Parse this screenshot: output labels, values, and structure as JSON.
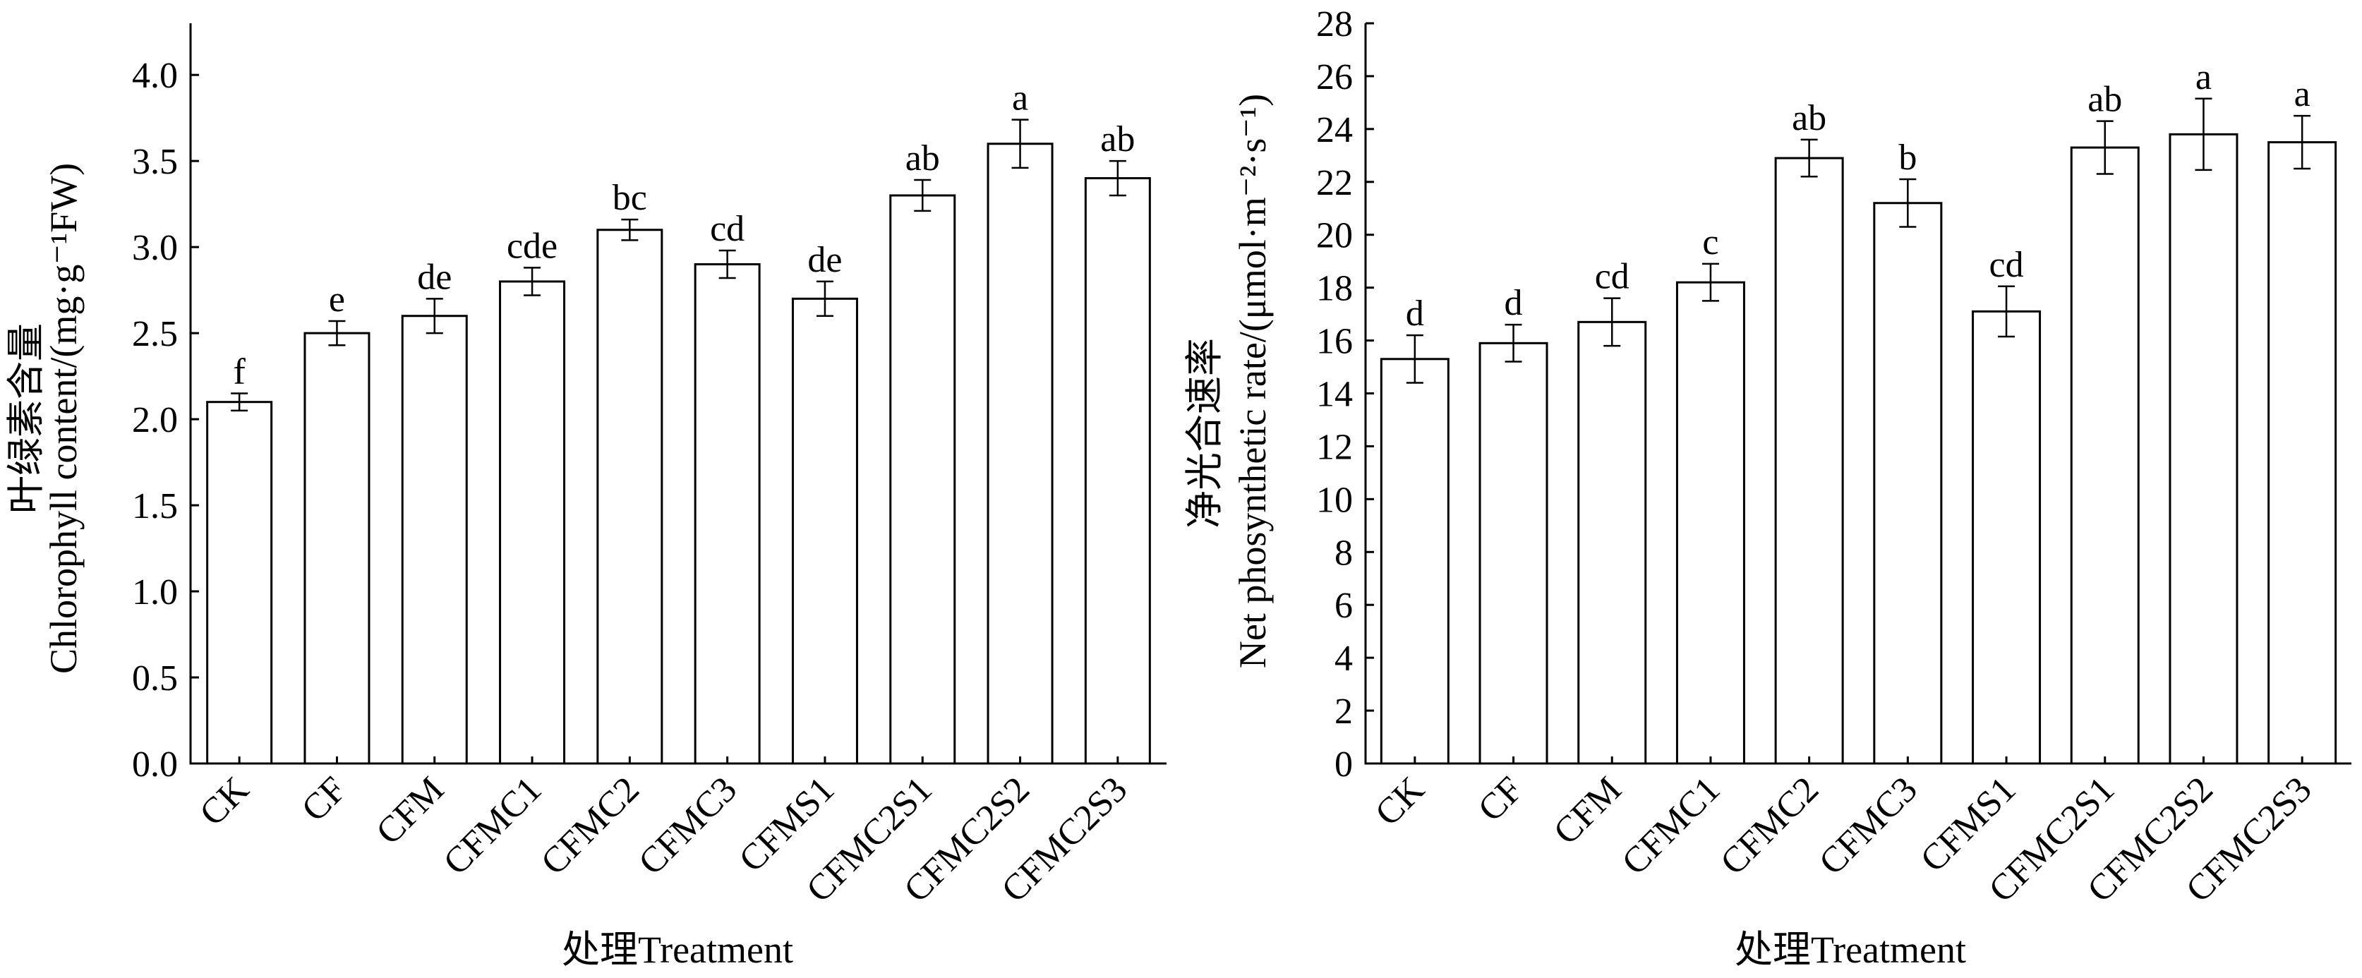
{
  "chart_data": [
    {
      "type": "bar",
      "title": "",
      "xlabel": "处理Treatment",
      "ylabel_cn": "叶绿素含量",
      "ylabel_en": "Chlorophyll content/(mg·g⁻¹FW)",
      "ylim": [
        0,
        4.3
      ],
      "yticks": [
        0.0,
        0.5,
        1.0,
        1.5,
        2.0,
        2.5,
        3.0,
        3.5,
        4.0
      ],
      "ytick_decimals": 1,
      "grid": false,
      "categories": [
        "CK",
        "CF",
        "CFM",
        "CFMC1",
        "CFMC2",
        "CFMC3",
        "CFMS1",
        "CFMC2S1",
        "CFMC2S2",
        "CFMC2S3"
      ],
      "values": [
        2.1,
        2.5,
        2.6,
        2.8,
        3.1,
        2.9,
        2.7,
        3.3,
        3.6,
        3.4
      ],
      "errors": [
        0.05,
        0.07,
        0.1,
        0.08,
        0.06,
        0.08,
        0.1,
        0.09,
        0.14,
        0.1
      ],
      "letters": [
        "f",
        "e",
        "de",
        "cde",
        "bc",
        "cd",
        "de",
        "ab",
        "a",
        "ab"
      ]
    },
    {
      "type": "bar",
      "title": "",
      "xlabel": "处理Treatment",
      "ylabel_cn": "净光合速率",
      "ylabel_en": "Net phosynthetic rate/(μmol·m⁻²·s⁻¹)",
      "ylim": [
        0,
        28
      ],
      "yticks": [
        0,
        2,
        4,
        6,
        8,
        10,
        12,
        14,
        16,
        18,
        20,
        22,
        24,
        26,
        28
      ],
      "ytick_decimals": 0,
      "grid": false,
      "categories": [
        "CK",
        "CF",
        "CFM",
        "CFMC1",
        "CFMC2",
        "CFMC3",
        "CFMS1",
        "CFMC2S1",
        "CFMC2S2",
        "CFMC2S3"
      ],
      "values": [
        15.3,
        15.9,
        16.7,
        18.2,
        22.9,
        21.2,
        17.1,
        23.3,
        23.8,
        23.5
      ],
      "errors": [
        0.9,
        0.7,
        0.9,
        0.7,
        0.7,
        0.9,
        0.95,
        1.0,
        1.35,
        1.0
      ],
      "letters": [
        "d",
        "d",
        "cd",
        "c",
        "ab",
        "b",
        "cd",
        "ab",
        "a",
        "a"
      ]
    }
  ]
}
